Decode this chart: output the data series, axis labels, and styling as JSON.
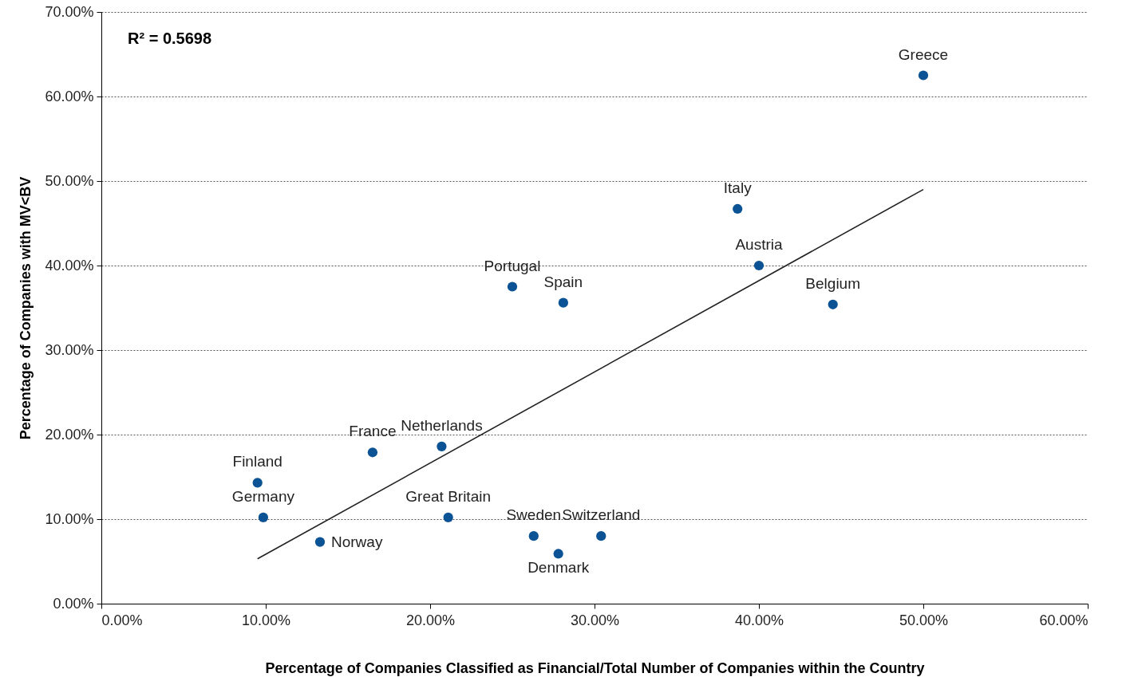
{
  "chart_data": {
    "type": "scatter",
    "xlabel": "Percentage of Companies Classified as Financial/Total Number of Companies within the Country",
    "ylabel": "Percentage of Companies with MV<BV",
    "xlim": [
      0,
      60
    ],
    "ylim": [
      0,
      70
    ],
    "xticks": [
      {
        "value": 0,
        "label": "0.00%"
      },
      {
        "value": 10,
        "label": "10.00%"
      },
      {
        "value": 20,
        "label": "20.00%"
      },
      {
        "value": 30,
        "label": "30.00%"
      },
      {
        "value": 40,
        "label": "40.00%"
      },
      {
        "value": 50,
        "label": "50.00%"
      },
      {
        "value": 60,
        "label": "60.00%"
      }
    ],
    "yticks": [
      {
        "value": 0,
        "label": "0.00%"
      },
      {
        "value": 10,
        "label": "10.00%"
      },
      {
        "value": 20,
        "label": "20.00%"
      },
      {
        "value": 30,
        "label": "30.00%"
      },
      {
        "value": 40,
        "label": "40.00%"
      },
      {
        "value": 50,
        "label": "50.00%"
      },
      {
        "value": 60,
        "label": "60.00%"
      },
      {
        "value": 70,
        "label": "70.00%"
      }
    ],
    "grid": "y",
    "series": [
      {
        "marker": "circle",
        "color": "#0b5394",
        "x": [
          9.5,
          9.85,
          13.3,
          16.5,
          20.7,
          21.1,
          25.0,
          28.1,
          26.3,
          27.8,
          30.4,
          38.7,
          40.0,
          44.5,
          50.0
        ],
        "values": [
          14.3,
          10.2,
          7.3,
          17.9,
          18.6,
          10.2,
          37.5,
          35.6,
          8.0,
          5.9,
          8.0,
          46.7,
          40.0,
          35.4,
          62.5
        ]
      },
      {
        "type": "line",
        "color": "#222222",
        "x": [
          9.5,
          50.0
        ],
        "values": [
          5.3,
          49.0
        ]
      }
    ],
    "annotations": [
      "R² = 0.5698",
      {
        "text": "Finland",
        "x": 9.5,
        "y": 14.3
      },
      {
        "text": "Germany",
        "x": 9.85,
        "y": 10.2
      },
      {
        "text": "Norway",
        "x": 13.3,
        "y": 7.3
      },
      {
        "text": "France",
        "x": 16.5,
        "y": 17.9
      },
      {
        "text": "Netherlands",
        "x": 20.7,
        "y": 18.6
      },
      {
        "text": "Great Britain",
        "x": 21.1,
        "y": 10.2
      },
      {
        "text": "Portugal",
        "x": 25.0,
        "y": 37.5
      },
      {
        "text": "Spain",
        "x": 28.1,
        "y": 35.6
      },
      {
        "text": "Sweden",
        "x": 26.3,
        "y": 8.0
      },
      {
        "text": "Denmark",
        "x": 27.8,
        "y": 5.9
      },
      {
        "text": "Switzerland",
        "x": 30.4,
        "y": 8.0
      },
      {
        "text": "Italy",
        "x": 38.7,
        "y": 46.7
      },
      {
        "text": "Austria",
        "x": 40.0,
        "y": 40.0
      },
      {
        "text": "Belgium",
        "x": 44.5,
        "y": 35.4
      },
      {
        "text": "Greece",
        "x": 50.0,
        "y": 62.5
      }
    ]
  }
}
